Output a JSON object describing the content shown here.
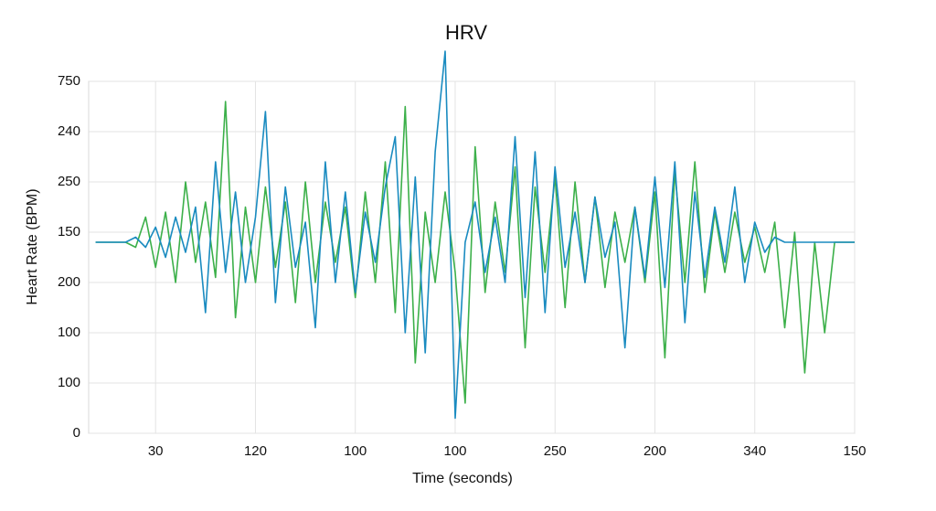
{
  "chart_data": {
    "type": "line",
    "title": "HRV",
    "x_label": "Time (seconds)",
    "y_label": "Heart Rate (BPM)",
    "xlim": [
      0.33,
      8
    ],
    "ylim": [
      0,
      7
    ],
    "xticks": [
      {
        "value": 1,
        "label": "30"
      },
      {
        "value": 2,
        "label": "120"
      },
      {
        "value": 3,
        "label": "100"
      },
      {
        "value": 4,
        "label": "100"
      },
      {
        "value": 5,
        "label": "250"
      },
      {
        "value": 6,
        "label": "200"
      },
      {
        "value": 7,
        "label": "340"
      },
      {
        "value": 8,
        "label": "150"
      }
    ],
    "yticks": [
      {
        "value": 0,
        "label": "0"
      },
      {
        "value": 1,
        "label": "100"
      },
      {
        "value": 2,
        "label": "100"
      },
      {
        "value": 3,
        "label": "200"
      },
      {
        "value": 4,
        "label": "150"
      },
      {
        "value": 5,
        "label": "250"
      },
      {
        "value": 6,
        "label": "240"
      },
      {
        "value": 7,
        "label": "750"
      }
    ],
    "grid": true,
    "x": [
      0.4,
      0.5,
      0.6,
      0.7,
      0.8,
      0.9,
      1.0,
      1.1,
      1.2,
      1.3,
      1.4,
      1.5,
      1.6,
      1.7,
      1.8,
      1.9,
      2.0,
      2.1,
      2.2,
      2.3,
      2.4,
      2.5,
      2.6,
      2.7,
      2.8,
      2.9,
      3.0,
      3.1,
      3.2,
      3.3,
      3.4,
      3.5,
      3.6,
      3.7,
      3.8,
      3.9,
      4.0,
      4.1,
      4.2,
      4.3,
      4.4,
      4.5,
      4.6,
      4.7,
      4.8,
      4.9,
      5.0,
      5.1,
      5.2,
      5.3,
      5.4,
      5.5,
      5.6,
      5.7,
      5.8,
      5.9,
      6.0,
      6.1,
      6.2,
      6.3,
      6.4,
      6.5,
      6.6,
      6.7,
      6.8,
      6.9,
      7.0,
      7.1,
      7.2,
      7.3,
      7.4,
      7.5,
      7.6,
      7.7,
      7.8,
      7.9,
      8.0
    ],
    "series": [
      {
        "color": "#3cb04a",
        "values": [
          3.8,
          3.8,
          3.8,
          3.8,
          3.7,
          4.3,
          3.3,
          4.4,
          3.0,
          5.0,
          3.4,
          4.6,
          3.1,
          6.6,
          2.3,
          4.5,
          3.0,
          4.9,
          3.3,
          4.6,
          2.6,
          5.0,
          3.0,
          4.6,
          3.4,
          4.5,
          2.7,
          4.8,
          3.0,
          5.4,
          2.4,
          6.5,
          1.4,
          4.4,
          3.0,
          4.8,
          3.2,
          0.6,
          5.7,
          2.8,
          4.6,
          3.2,
          5.3,
          1.7,
          4.9,
          3.2,
          5.1,
          2.5,
          5.0,
          3.0,
          4.7,
          2.9,
          4.4,
          3.4,
          4.5,
          3.0,
          4.8,
          1.5,
          5.2,
          3.0,
          5.4,
          2.8,
          4.4,
          3.2,
          4.4,
          3.4,
          4.1,
          3.2,
          4.2,
          2.1,
          4.0,
          1.2,
          3.8,
          2.0,
          3.8,
          3.8,
          3.8
        ]
      },
      {
        "color": "#1a8bc0",
        "values": [
          3.8,
          3.8,
          3.8,
          3.8,
          3.9,
          3.7,
          4.1,
          3.5,
          4.3,
          3.6,
          4.5,
          2.4,
          5.4,
          3.2,
          4.8,
          3.0,
          4.3,
          6.4,
          2.6,
          4.9,
          3.3,
          4.2,
          2.1,
          5.4,
          3.0,
          4.8,
          2.8,
          4.4,
          3.4,
          4.9,
          5.9,
          2.0,
          5.1,
          1.6,
          5.6,
          7.6,
          0.3,
          3.8,
          4.6,
          3.2,
          4.3,
          3.0,
          5.9,
          2.7,
          5.6,
          2.4,
          5.3,
          3.3,
          4.4,
          3.0,
          4.7,
          3.5,
          4.2,
          1.7,
          4.5,
          3.1,
          5.1,
          2.9,
          5.4,
          2.2,
          4.8,
          3.1,
          4.5,
          3.4,
          4.9,
          3.0,
          4.2,
          3.6,
          3.9,
          3.8,
          3.8,
          3.8,
          3.8,
          3.8,
          3.8,
          3.8,
          3.8
        ]
      }
    ]
  }
}
